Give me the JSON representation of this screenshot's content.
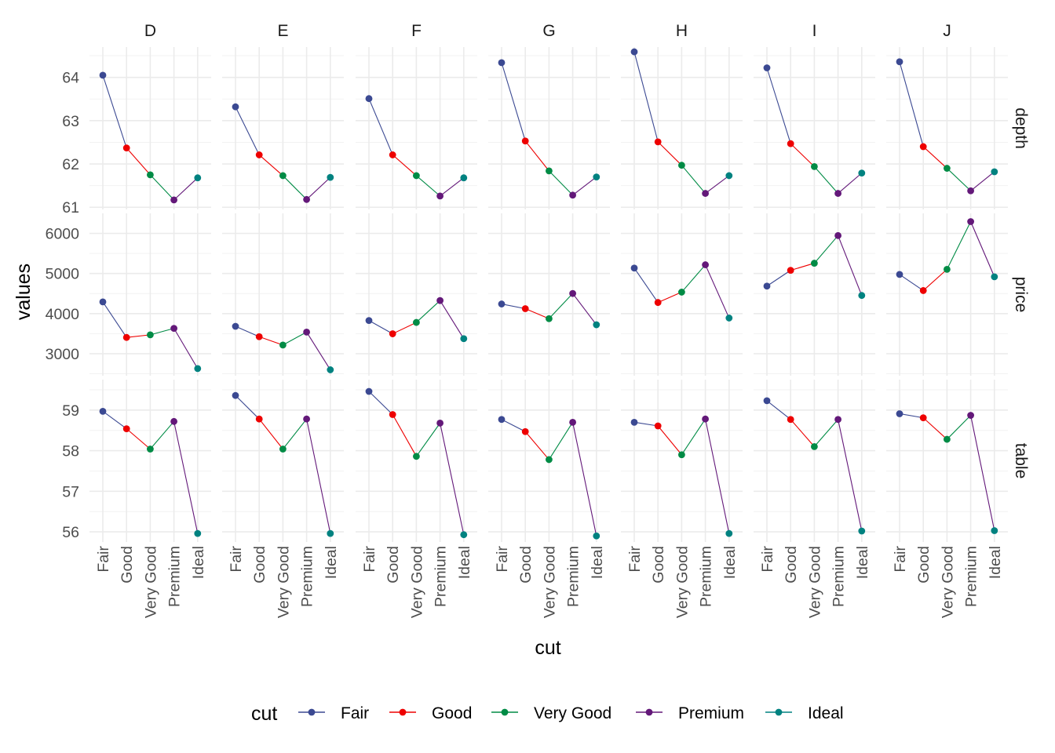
{
  "chart_data": {
    "type": "line",
    "facet_columns": [
      "D",
      "E",
      "F",
      "G",
      "H",
      "I",
      "J"
    ],
    "facet_rows": [
      "depth",
      "price",
      "table"
    ],
    "categories": [
      "Fair",
      "Good",
      "Very Good",
      "Premium",
      "Ideal"
    ],
    "xlabel": "cut",
    "ylabel": "values",
    "legend": {
      "title": "cut",
      "position": "bottom",
      "entries": [
        "Fair",
        "Good",
        "Very Good",
        "Premium",
        "Ideal"
      ]
    },
    "colors": {
      "Fair": "#3b4992",
      "Good": "#ee0000",
      "Very Good": "#008b45",
      "Premium": "#631879",
      "Ideal": "#008280"
    },
    "rows": {
      "depth": {
        "ylim": [
          60.95,
          64.7
        ],
        "ticks": [
          61,
          62,
          63,
          64
        ],
        "values": {
          "D": [
            64.05,
            62.37,
            61.75,
            61.17,
            61.68
          ],
          "E": [
            63.32,
            62.21,
            61.73,
            61.18,
            61.69
          ],
          "F": [
            63.51,
            62.21,
            61.73,
            61.26,
            61.68
          ],
          "G": [
            64.34,
            62.53,
            61.84,
            61.28,
            61.7
          ],
          "H": [
            64.59,
            62.51,
            61.97,
            61.32,
            61.73
          ],
          "I": [
            64.22,
            62.47,
            61.94,
            61.32,
            61.79
          ],
          "J": [
            64.36,
            62.4,
            61.9,
            61.38,
            61.82
          ]
        }
      },
      "price": {
        "ylim": [
          2450,
          6500
        ],
        "ticks": [
          3000,
          4000,
          5000,
          6000
        ],
        "values": {
          "D": [
            4291,
            3405,
            3470,
            3631,
            2629
          ],
          "E": [
            3682,
            3424,
            3215,
            3539,
            2598
          ],
          "F": [
            3827,
            3496,
            3779,
            4325,
            3374
          ],
          "G": [
            4239,
            4123,
            3873,
            4501,
            3721
          ],
          "H": [
            5136,
            4276,
            4535,
            5217,
            3889
          ],
          "I": [
            4685,
            5079,
            5256,
            5946,
            4452
          ],
          "J": [
            4976,
            4574,
            5104,
            6295,
            4918
          ]
        }
      },
      "table": {
        "ylim": [
          55.75,
          59.75
        ],
        "ticks": [
          56,
          57,
          58,
          59
        ],
        "values": {
          "D": [
            58.97,
            58.54,
            58.04,
            58.72,
            55.96
          ],
          "E": [
            59.36,
            58.78,
            58.04,
            58.78,
            55.96
          ],
          "F": [
            59.46,
            58.89,
            57.86,
            58.68,
            55.93
          ],
          "G": [
            58.77,
            58.47,
            57.78,
            58.7,
            55.9
          ],
          "H": [
            58.7,
            58.61,
            57.9,
            58.78,
            55.96
          ],
          "I": [
            59.23,
            58.77,
            58.1,
            58.77,
            56.02
          ],
          "J": [
            58.91,
            58.81,
            58.28,
            58.87,
            56.03
          ]
        }
      }
    }
  }
}
